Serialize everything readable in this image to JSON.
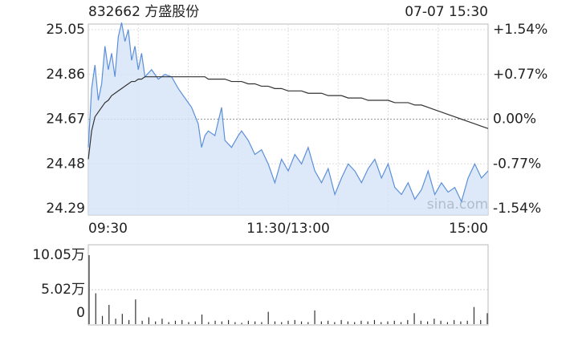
{
  "header": {
    "title": "832662 方盛股份",
    "time": "07-07 15:30"
  },
  "chart_data": [
    {
      "type": "line",
      "watermark": "sina.com",
      "xlim": [
        0,
        240
      ],
      "xticks": [
        {
          "value": 0,
          "label": "09:30"
        },
        {
          "value": 120,
          "label": "11:30/13:00"
        },
        {
          "value": 240,
          "label": "15:00"
        }
      ],
      "ylim": [
        24.29,
        25.05
      ],
      "yticks": [
        25.05,
        24.86,
        24.67,
        24.48,
        24.29
      ],
      "y2lim": [
        -1.54,
        1.54
      ],
      "y2ticks": [
        {
          "value": 1.54,
          "label": "+1.54%"
        },
        {
          "value": 0.77,
          "label": "+0.77%"
        },
        {
          "value": 0,
          "label": "0.00%"
        },
        {
          "value": -0.77,
          "label": "-0.77%"
        },
        {
          "value": -1.54,
          "label": "-1.54%"
        }
      ],
      "up_color": "#e0221c",
      "flat_color": "#222222",
      "down_color": "#1fa31f",
      "fill_color": "#d4e3f7",
      "x": [
        0,
        2,
        4,
        6,
        8,
        10,
        12,
        14,
        16,
        18,
        20,
        22,
        24,
        26,
        28,
        30,
        32,
        34,
        38,
        42,
        46,
        50,
        54,
        58,
        62,
        66,
        68,
        70,
        72,
        76,
        80,
        82,
        86,
        90,
        92,
        96,
        100,
        104,
        108,
        112,
        116,
        120,
        124,
        128,
        132,
        136,
        140,
        144,
        148,
        152,
        156,
        160,
        164,
        168,
        172,
        176,
        180,
        184,
        188,
        192,
        196,
        200,
        204,
        208,
        212,
        216,
        220,
        224,
        228,
        232,
        236,
        240
      ],
      "series": [
        {
          "color": "#5b8fd9",
          "values": [
            24.55,
            24.8,
            24.9,
            24.75,
            24.82,
            24.98,
            24.88,
            24.95,
            24.85,
            25.02,
            25.08,
            25.0,
            25.05,
            24.92,
            24.98,
            24.88,
            24.95,
            24.85,
            24.88,
            24.84,
            24.86,
            24.85,
            24.8,
            24.76,
            24.72,
            24.65,
            24.55,
            24.6,
            24.62,
            24.6,
            24.72,
            24.58,
            24.55,
            24.6,
            24.62,
            24.58,
            24.52,
            24.54,
            24.48,
            24.4,
            24.5,
            24.45,
            24.52,
            24.48,
            24.55,
            24.45,
            24.4,
            24.46,
            24.35,
            24.42,
            24.48,
            24.45,
            24.4,
            24.46,
            24.5,
            24.42,
            24.48,
            24.38,
            24.35,
            24.4,
            24.33,
            24.37,
            24.45,
            24.35,
            24.4,
            24.36,
            24.38,
            24.32,
            24.42,
            24.48,
            24.42,
            24.45
          ]
        },
        {
          "color": "#333333",
          "values": [
            24.5,
            24.62,
            24.68,
            24.7,
            24.72,
            24.74,
            24.75,
            24.77,
            24.78,
            24.79,
            24.8,
            24.81,
            24.82,
            24.83,
            24.83,
            24.84,
            24.84,
            24.85,
            24.85,
            24.85,
            24.85,
            24.85,
            24.85,
            24.85,
            24.85,
            24.85,
            24.85,
            24.85,
            24.84,
            24.84,
            24.84,
            24.84,
            24.83,
            24.83,
            24.83,
            24.82,
            24.82,
            24.81,
            24.81,
            24.8,
            24.8,
            24.79,
            24.79,
            24.79,
            24.78,
            24.78,
            24.78,
            24.77,
            24.77,
            24.77,
            24.76,
            24.76,
            24.76,
            24.75,
            24.75,
            24.75,
            24.75,
            24.74,
            24.74,
            24.74,
            24.73,
            24.73,
            24.72,
            24.71,
            24.7,
            24.69,
            24.68,
            24.67,
            24.66,
            24.65,
            24.64,
            24.63
          ]
        }
      ]
    },
    {
      "type": "bar",
      "xlim": [
        0,
        240
      ],
      "ylim": [
        0,
        10.05
      ],
      "yticks": [
        {
          "value": 10.05,
          "label": "10.05万"
        },
        {
          "value": 5.02,
          "label": "5.02万"
        },
        0
      ],
      "color": "#333333",
      "x": [
        0,
        4,
        8,
        12,
        16,
        20,
        24,
        28,
        32,
        36,
        40,
        44,
        48,
        52,
        56,
        60,
        64,
        68,
        72,
        76,
        80,
        84,
        88,
        92,
        96,
        100,
        104,
        108,
        112,
        116,
        120,
        124,
        128,
        132,
        136,
        140,
        144,
        148,
        152,
        156,
        160,
        164,
        168,
        172,
        176,
        180,
        184,
        188,
        192,
        196,
        200,
        204,
        208,
        212,
        216,
        220,
        224,
        228,
        232,
        236,
        240
      ],
      "values": [
        10.05,
        4.5,
        1.2,
        2.8,
        0.8,
        1.5,
        0.6,
        3.6,
        0.5,
        1.0,
        0.4,
        0.8,
        0.3,
        0.5,
        0.6,
        0.3,
        0.4,
        1.4,
        0.3,
        0.5,
        0.4,
        0.6,
        0.3,
        0.2,
        0.5,
        0.4,
        0.3,
        1.8,
        0.4,
        0.3,
        0.5,
        0.6,
        0.4,
        0.3,
        2.0,
        0.4,
        0.5,
        0.3,
        0.6,
        0.4,
        0.3,
        0.5,
        0.4,
        0.6,
        0.3,
        0.4,
        0.5,
        0.3,
        0.6,
        1.6,
        0.5,
        0.4,
        0.8,
        0.5,
        0.3,
        0.6,
        0.4,
        0.5,
        2.5,
        0.6,
        1.6
      ]
    }
  ]
}
